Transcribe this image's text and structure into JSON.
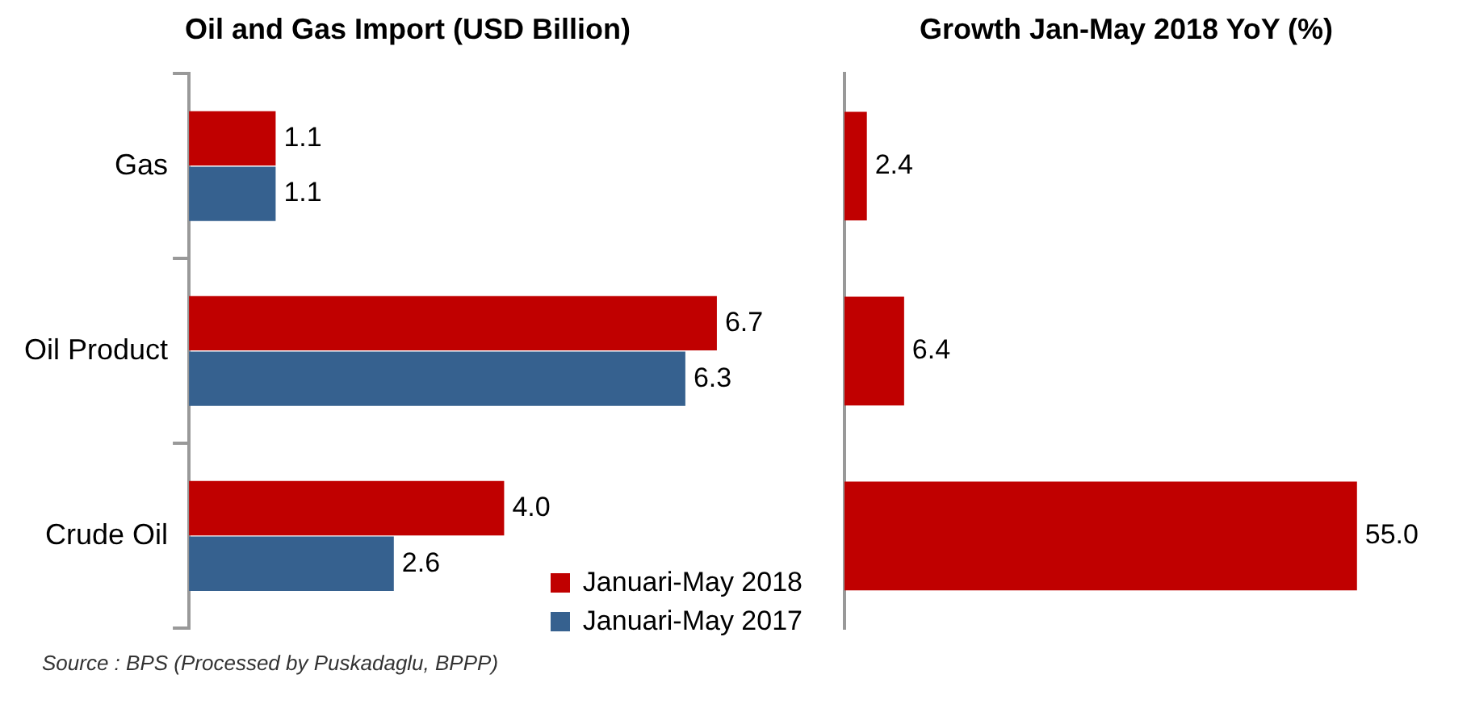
{
  "chart_data": [
    {
      "type": "bar",
      "orientation": "horizontal",
      "title": "Oil and Gas Import (USD Billion)",
      "categories": [
        "Gas",
        "Oil Product",
        "Crude Oil"
      ],
      "series": [
        {
          "name": "Januari-May 2018",
          "color": "#c00000",
          "values": [
            1.1,
            6.7,
            4.0
          ],
          "value_labels": [
            "1.1",
            "6.7",
            "4.0"
          ]
        },
        {
          "name": "Januari-May 2017",
          "color": "#36618f",
          "values": [
            1.1,
            6.3,
            2.6
          ],
          "value_labels": [
            "1.1",
            "6.3",
            "2.6"
          ]
        }
      ],
      "legend": "bottom right",
      "annotations": [
        "Source : BPS (Processed by Puskadaglu, BPPP)"
      ]
    },
    {
      "type": "bar",
      "orientation": "horizontal",
      "title": "Growth Jan-May 2018 YoY (%)",
      "categories": [
        null,
        null,
        null
      ],
      "series": [
        {
          "color": "#c00000",
          "values": [
            2.4,
            6.4,
            55.0
          ],
          "value_labels": [
            "2.4",
            "6.4",
            "55.0"
          ]
        }
      ]
    }
  ]
}
